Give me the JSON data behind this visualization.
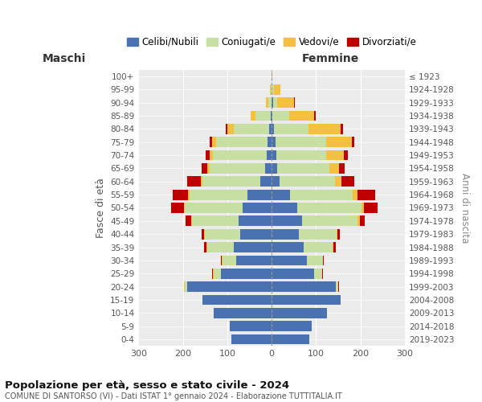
{
  "age_groups": [
    "0-4",
    "5-9",
    "10-14",
    "15-19",
    "20-24",
    "25-29",
    "30-34",
    "35-39",
    "40-44",
    "45-49",
    "50-54",
    "55-59",
    "60-64",
    "65-69",
    "70-74",
    "75-79",
    "80-84",
    "85-89",
    "90-94",
    "95-99",
    "100+"
  ],
  "birth_years": [
    "2019-2023",
    "2014-2018",
    "2009-2013",
    "2004-2008",
    "1999-2003",
    "1994-1998",
    "1989-1993",
    "1984-1988",
    "1979-1983",
    "1974-1978",
    "1969-1973",
    "1964-1968",
    "1959-1963",
    "1954-1958",
    "1949-1953",
    "1944-1948",
    "1939-1943",
    "1934-1938",
    "1929-1933",
    "1924-1928",
    "≤ 1923"
  ],
  "colors": {
    "celibe": "#4a72b0",
    "coniugato": "#c8dfa4",
    "vedovo": "#f5c040",
    "divorziato": "#c00000"
  },
  "maschi": {
    "celibe": [
      90,
      95,
      130,
      155,
      190,
      115,
      80,
      85,
      70,
      75,
      65,
      55,
      25,
      15,
      12,
      10,
      5,
      2,
      0,
      0,
      0
    ],
    "coniugato": [
      0,
      0,
      0,
      0,
      5,
      15,
      30,
      60,
      80,
      105,
      130,
      130,
      130,
      125,
      120,
      115,
      80,
      35,
      8,
      2,
      0
    ],
    "vedovo": [
      0,
      0,
      0,
      0,
      2,
      2,
      2,
      2,
      2,
      2,
      3,
      3,
      5,
      5,
      8,
      10,
      15,
      10,
      5,
      2,
      0
    ],
    "divorziato": [
      0,
      0,
      0,
      0,
      0,
      2,
      2,
      5,
      5,
      12,
      28,
      35,
      30,
      12,
      8,
      5,
      3,
      0,
      0,
      0,
      0
    ]
  },
  "femmine": {
    "nubile": [
      85,
      90,
      125,
      155,
      145,
      95,
      80,
      72,
      62,
      68,
      58,
      42,
      18,
      12,
      10,
      8,
      5,
      2,
      3,
      0,
      0
    ],
    "coniugata": [
      0,
      0,
      0,
      0,
      5,
      18,
      35,
      65,
      85,
      125,
      145,
      140,
      125,
      118,
      112,
      115,
      78,
      38,
      10,
      5,
      0
    ],
    "vedova": [
      0,
      0,
      0,
      0,
      0,
      0,
      0,
      2,
      2,
      5,
      5,
      12,
      15,
      22,
      40,
      58,
      72,
      55,
      38,
      15,
      2
    ],
    "divorziata": [
      0,
      0,
      0,
      0,
      2,
      2,
      2,
      5,
      5,
      12,
      30,
      40,
      28,
      12,
      10,
      5,
      5,
      5,
      2,
      0,
      0
    ]
  },
  "xlim": 300,
  "title": "Popolazione per età, sesso e stato civile - 2024",
  "subtitle": "COMUNE DI SANTORSO (VI) - Dati ISTAT 1° gennaio 2024 - Elaborazione TUTTITALIA.IT",
  "ylabel_left": "Fasce di età",
  "ylabel_right": "Anni di nascita",
  "xlabel_left": "Maschi",
  "xlabel_right": "Femmine",
  "bg_color": "#ffffff",
  "grid_color": "#cccccc"
}
